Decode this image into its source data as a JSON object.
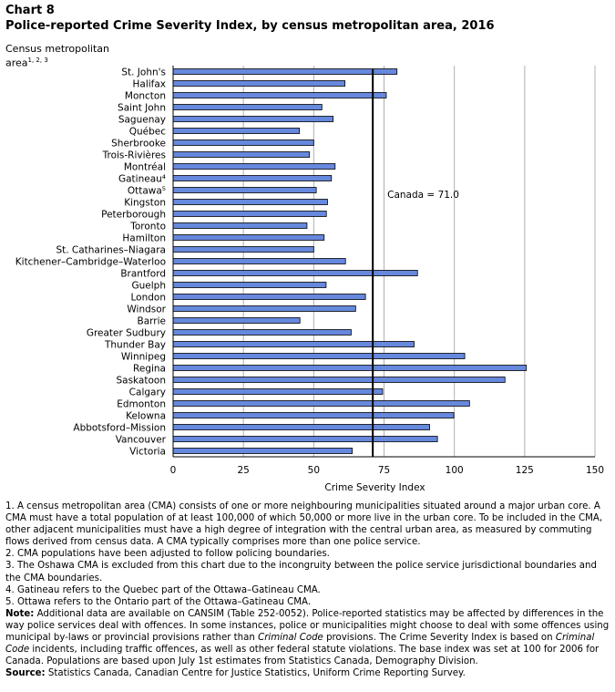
{
  "chart_label": "Chart 8",
  "title": "Police-reported Crime Severity Index, by census metropolitan area, 2016",
  "ylabel_main": "Census metropolitan area",
  "ylabel_sup": "1, 2, 3",
  "chart_data": {
    "type": "bar",
    "orientation": "horizontal",
    "title": "Police-reported Crime Severity Index, by census metropolitan area, 2016",
    "xlabel": "Crime Severity Index",
    "ylabel": "Census metropolitan area",
    "xlim": [
      0,
      150
    ],
    "xticks": [
      0,
      25,
      50,
      75,
      100,
      125,
      150
    ],
    "grid": true,
    "bar_color": "#6688DD",
    "categories": [
      "St. John's",
      "Halifax",
      "Moncton",
      "Saint John",
      "Saguenay",
      "Québec",
      "Sherbrooke",
      "Trois-Rivières",
      "Montréal",
      "Gatineau⁴",
      "Ottawa⁵",
      "Kingston",
      "Peterborough",
      "Toronto",
      "Hamilton",
      "St. Catharines–Niagara",
      "Kitchener–Cambridge–Waterloo",
      "Brantford",
      "Guelph",
      "London",
      "Windsor",
      "Barrie",
      "Greater Sudbury",
      "Thunder Bay",
      "Winnipeg",
      "Regina",
      "Saskatoon",
      "Calgary",
      "Edmonton",
      "Kelowna",
      "Abbotsford–Mission",
      "Vancouver",
      "Victoria"
    ],
    "values": [
      79.6,
      61.1,
      75.8,
      52.9,
      56.9,
      44.9,
      50.0,
      48.5,
      57.6,
      56.3,
      50.9,
      54.9,
      54.5,
      47.6,
      53.7,
      50.0,
      61.3,
      86.9,
      54.4,
      68.4,
      64.9,
      45.1,
      63.3,
      85.7,
      103.7,
      125.6,
      118.0,
      74.5,
      105.4,
      99.8,
      91.2,
      94.0,
      63.7
    ],
    "reference_line": {
      "value": 71.0,
      "label": "Canada = 71.0"
    }
  },
  "notes": {
    "n1": "1. A census metropolitan area (CMA) consists of one or more neighbouring municipalities situated around a major urban core. A CMA must have a total population of at least 100,000 of which 50,000 or more live in the urban core. To be included in the CMA, other adjacent municipalities must have a high degree of integration with the central urban area, as measured by commuting flows derived from census data. A CMA typically comprises more than one police service.",
    "n2": "2. CMA populations have been adjusted to follow policing boundaries.",
    "n3": "3. The Oshawa CMA is excluded from this chart due to the incongruity between the police service jurisdictional boundaries and the CMA boundaries.",
    "n4": "4. Gatineau refers to the Quebec part of the Ottawa–Gatineau CMA.",
    "n5": "5. Ottawa refers to the Ontario part of the Ottawa–Gatineau CMA.",
    "note_label": "Note:",
    "note_a": "Additional data are available on CANSIM (Table 252-0052). Police-reported statistics may be affected by differences in the way police services deal with offences. In some instances, police or municipalities might choose to deal with some offences using municipal by-laws or provincial provisions rather than",
    "note_i1": "Criminal Code",
    "note_b": "provisions. The Crime Severity Index is based on",
    "note_i2": "Criminal Code",
    "note_c": "incidents, including traffic offences, as well as other federal statute violations. The base index was set at 100 for 2006 for Canada. Populations are based upon July 1st estimates from Statistics Canada, Demography Division.",
    "source_label": "Source:",
    "source_text": "Statistics Canada, Canadian Centre for Justice Statistics, Uniform Crime Reporting Survey."
  }
}
